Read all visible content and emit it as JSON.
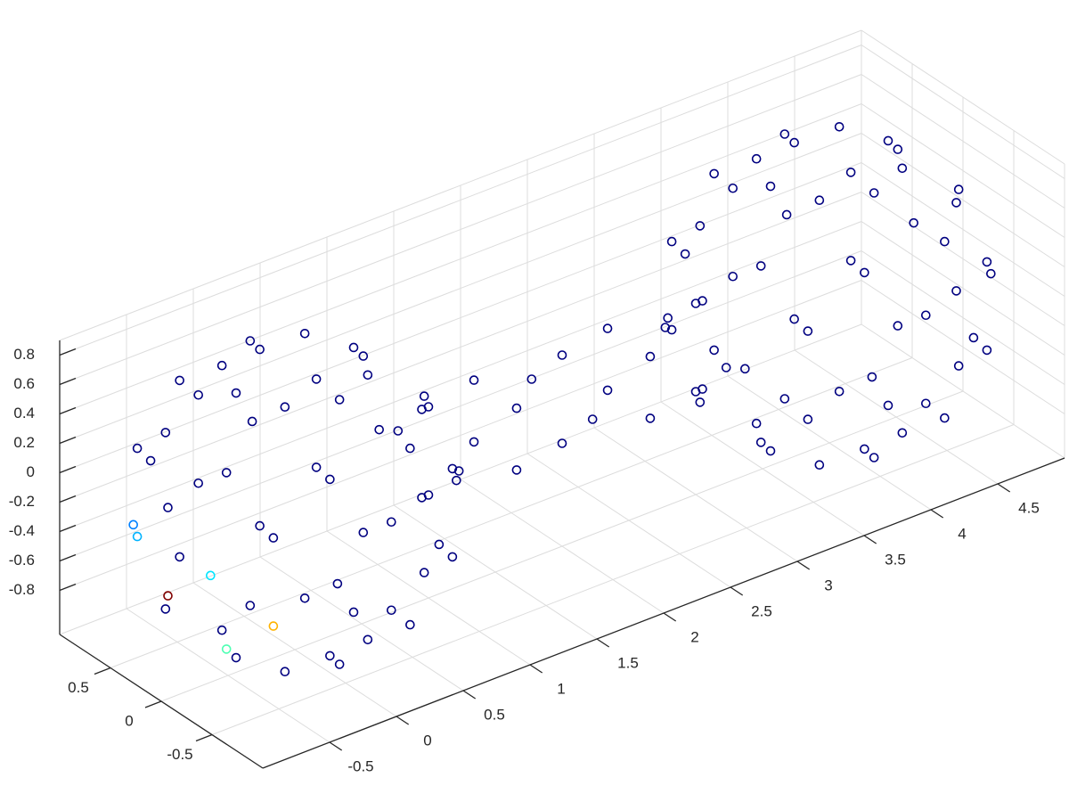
{
  "chart_data": {
    "type": "scatter3d",
    "colormap": "jet",
    "grid": true,
    "xlim": [
      -1,
      5
    ],
    "ylim": [
      -1,
      1
    ],
    "zlim": [
      -1.1,
      0.9
    ],
    "xticks": [
      -0.5,
      0,
      0.5,
      1,
      1.5,
      2,
      2.5,
      3,
      3.5,
      4,
      4.5
    ],
    "yticks": [
      -0.5,
      0,
      0.5
    ],
    "zticks": [
      -0.8,
      -0.6,
      -0.4,
      -0.2,
      0,
      0.2,
      0.4,
      0.6,
      0.8
    ],
    "x": [
      0.44,
      0.31,
      0,
      -0.31,
      -0.44,
      -0.31,
      0,
      0.31,
      0.74,
      0.3,
      -0.3,
      -0.74,
      -0.74,
      -0.3,
      0.3,
      0.74,
      0.95,
      0.67,
      0,
      -0.67,
      -0.95,
      -0.67,
      0,
      0.67,
      0.92,
      0.38,
      -0.38,
      -0.92,
      -0.92,
      -0.38,
      0.38,
      0.92,
      0.95,
      0.67,
      0,
      -0.67,
      -0.95,
      -0.67,
      0,
      0.67,
      0.74,
      0.3,
      -0.3,
      -0.74,
      -0.74,
      -0.3,
      0.3,
      0.74,
      0.44,
      0.31,
      0,
      -0.31,
      -0.44,
      -0.31,
      0,
      0.31,
      4.44,
      4.31,
      4,
      3.69,
      3.56,
      3.69,
      4,
      4.31,
      4.74,
      4.3,
      3.7,
      3.26,
      3.26,
      3.7,
      4.3,
      4.74,
      4.95,
      4.67,
      4,
      3.33,
      3.05,
      3.33,
      4,
      4.67,
      4.92,
      4.38,
      3.62,
      3.08,
      3.08,
      3.62,
      4.38,
      4.92,
      4.95,
      4.67,
      4,
      3.33,
      3.05,
      3.33,
      4,
      4.67,
      4.74,
      4.3,
      3.7,
      3.26,
      3.26,
      3.7,
      4.3,
      4.74,
      4.44,
      4.31,
      4,
      3.69,
      3.56,
      3.69,
      4,
      4.31,
      1,
      1,
      1,
      1,
      1.5,
      1.5,
      1.5,
      1.5,
      2,
      2,
      2,
      2,
      2.5,
      2.5,
      2.5,
      2.5,
      3,
      3,
      3,
      3
    ],
    "y": [
      0,
      0.31,
      0.44,
      0.31,
      0,
      -0.31,
      -0.44,
      -0.31,
      0.3,
      0.74,
      0.74,
      0.3,
      -0.3,
      -0.74,
      -0.74,
      -0.3,
      0,
      0.67,
      0.95,
      0.67,
      0,
      -0.67,
      -0.95,
      -0.67,
      0.38,
      0.92,
      0.92,
      0.38,
      -0.38,
      -0.92,
      -0.92,
      -0.38,
      0,
      0.67,
      0.95,
      0.67,
      0,
      -0.67,
      -0.95,
      -0.67,
      0.3,
      0.74,
      0.74,
      0.3,
      -0.3,
      -0.74,
      -0.74,
      -0.3,
      0,
      0.31,
      0.44,
      0.31,
      0,
      -0.31,
      -0.44,
      -0.31,
      0,
      0.31,
      0.44,
      0.31,
      0,
      -0.31,
      -0.44,
      -0.31,
      0.3,
      0.74,
      0.74,
      0.3,
      -0.3,
      -0.74,
      -0.74,
      -0.3,
      0,
      0.67,
      0.95,
      0.67,
      0,
      -0.67,
      -0.95,
      -0.67,
      0.38,
      0.92,
      0.92,
      0.38,
      -0.38,
      -0.92,
      -0.92,
      -0.38,
      0,
      0.67,
      0.95,
      0.67,
      0,
      -0.67,
      -0.95,
      -0.67,
      0.3,
      0.74,
      0.74,
      0.3,
      -0.3,
      -0.74,
      -0.74,
      -0.3,
      0,
      0.31,
      0.44,
      0.31,
      0,
      -0.31,
      -0.44,
      -0.31,
      0.3,
      0,
      -0.3,
      0,
      0.21,
      -0.21,
      -0.21,
      0.21,
      0.3,
      0,
      -0.3,
      0,
      0.21,
      -0.21,
      -0.21,
      0.21,
      0.3,
      0,
      -0.3,
      0
    ],
    "z": [
      -1,
      -1,
      -1,
      -1,
      -1,
      -1,
      -1,
      -1,
      -0.7,
      -0.7,
      -0.7,
      -0.7,
      -0.7,
      -0.7,
      -0.7,
      -0.7,
      -0.4,
      -0.4,
      -0.4,
      -0.4,
      -0.4,
      -0.4,
      -0.4,
      -0.4,
      -0.1,
      -0.1,
      -0.1,
      -0.1,
      -0.1,
      -0.1,
      -0.1,
      -0.1,
      0.2,
      0.2,
      0.2,
      0.2,
      0.2,
      0.2,
      0.2,
      0.2,
      0.5,
      0.5,
      0.5,
      0.5,
      0.5,
      0.5,
      0.5,
      0.5,
      0.8,
      0.8,
      0.8,
      0.8,
      0.8,
      0.8,
      0.8,
      0.8,
      -1,
      -1,
      -1,
      -1,
      -1,
      -1,
      -1,
      -1,
      -0.7,
      -0.7,
      -0.7,
      -0.7,
      -0.7,
      -0.7,
      -0.7,
      -0.7,
      -0.4,
      -0.4,
      -0.4,
      -0.4,
      -0.4,
      -0.4,
      -0.4,
      -0.4,
      -0.1,
      -0.1,
      -0.1,
      -0.1,
      -0.1,
      -0.1,
      -0.1,
      -0.1,
      0.2,
      0.2,
      0.2,
      0.2,
      0.2,
      0.2,
      0.2,
      0.2,
      0.5,
      0.5,
      0.5,
      0.5,
      0.5,
      0.5,
      0.5,
      0.5,
      0.8,
      0.8,
      0.8,
      0.8,
      0.8,
      0.8,
      0.8,
      0.8,
      -0.1,
      0.2,
      -0.1,
      -0.4,
      0.11,
      0.11,
      -0.31,
      -0.31,
      -0.1,
      0.2,
      -0.1,
      -0.4,
      0.11,
      0.11,
      -0.31,
      -0.31,
      -0.1,
      0.2,
      -0.1,
      -0.4
    ],
    "c": [
      0,
      0,
      0,
      0,
      0,
      0,
      0,
      0,
      0,
      0,
      0,
      0,
      0.45,
      0,
      0,
      0,
      0,
      0,
      0,
      0.3,
      1,
      0.7,
      0,
      0,
      0,
      0,
      0,
      0.25,
      0.35,
      0,
      0,
      0,
      0,
      0,
      0,
      0,
      0,
      0,
      0,
      0,
      0,
      0,
      0,
      0,
      0,
      0,
      0,
      0,
      0,
      0,
      0,
      0,
      0,
      0,
      0,
      0,
      0,
      0,
      0,
      0,
      0,
      0,
      0,
      0,
      0,
      0,
      0,
      0,
      0,
      0,
      0,
      0,
      0,
      0,
      0,
      0,
      0,
      0,
      0,
      0,
      0,
      0,
      0,
      0,
      0,
      0,
      0,
      0,
      0,
      0,
      0,
      0,
      0,
      0,
      0,
      0,
      0,
      0,
      0,
      0,
      0,
      0,
      0,
      0,
      0,
      0,
      0,
      0,
      0,
      0,
      0,
      0,
      0,
      0,
      0,
      0,
      0,
      0,
      0,
      0,
      0,
      0,
      0,
      0,
      0,
      0,
      0,
      0,
      0,
      0,
      0,
      0
    ]
  }
}
